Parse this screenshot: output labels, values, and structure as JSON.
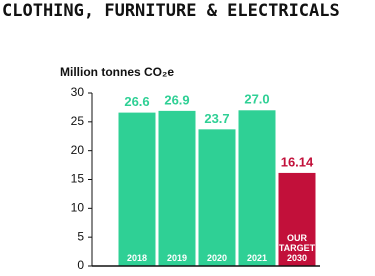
{
  "chart_data": {
    "type": "bar",
    "title": "CLOTHING, FURNITURE & ELECTRICALS",
    "y_label": "Million tonnes CO₂e",
    "categories": [
      "2018",
      "2019",
      "2020",
      "2021",
      "OUR TARGET 2030"
    ],
    "values": [
      26.6,
      26.9,
      23.7,
      27.0,
      16.14
    ],
    "value_labels": [
      "26.6",
      "26.9",
      "23.7",
      "27.0",
      "16.14"
    ],
    "colors": [
      "#2fd095",
      "#2fd095",
      "#2fd095",
      "#2fd095",
      "#c2103a"
    ],
    "ylim": [
      0,
      30
    ],
    "yticks": [
      0,
      5,
      10,
      15,
      20,
      25,
      30
    ],
    "grid": false
  }
}
